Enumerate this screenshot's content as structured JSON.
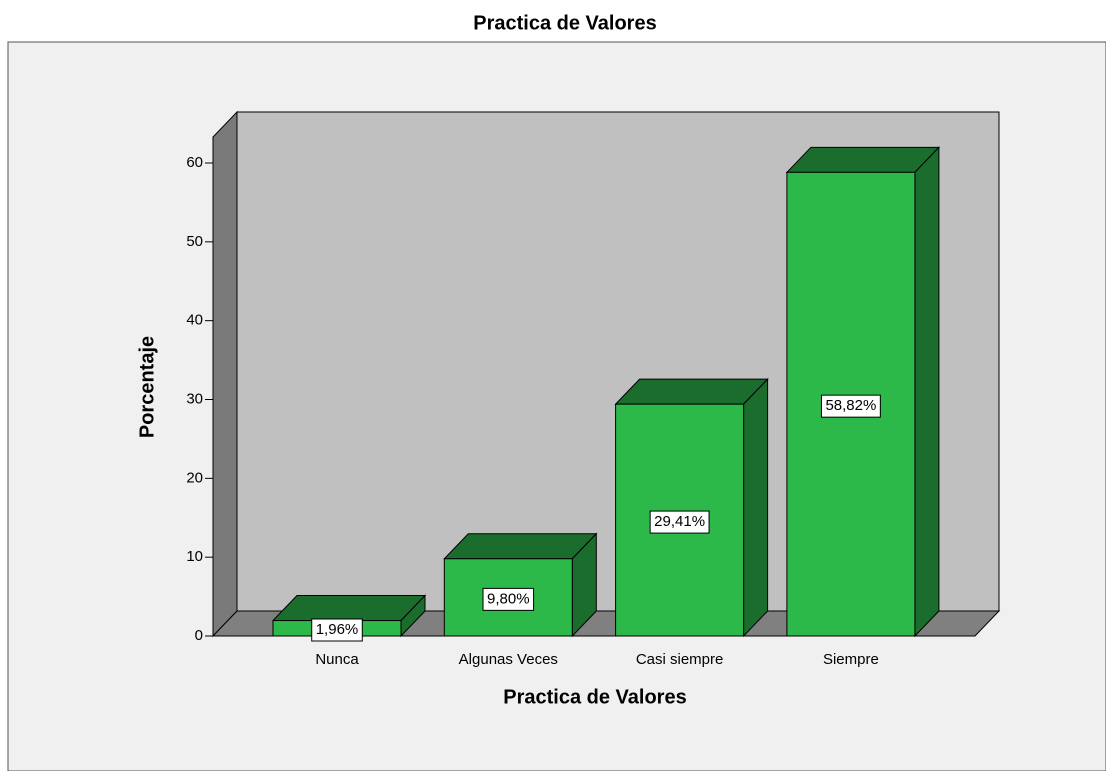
{
  "chart_data": {
    "type": "bar3d",
    "title": "Practica de Valores",
    "x_label": "Practica de Valores",
    "y_label": "Porcentaje",
    "categories": [
      "Nunca",
      "Algunas Veces",
      "Casi siempre",
      "Siempre"
    ],
    "values": [
      1.96,
      9.8,
      29.41,
      58.82
    ],
    "value_labels": [
      "1,96%",
      "9,80%",
      "29,41%",
      "58,82%"
    ],
    "color": "#2db84a",
    "side_color": "#1b6d2e",
    "ylim": [
      0,
      63.3
    ],
    "yticks": [
      0,
      10,
      20,
      30,
      40,
      50,
      60
    ]
  }
}
